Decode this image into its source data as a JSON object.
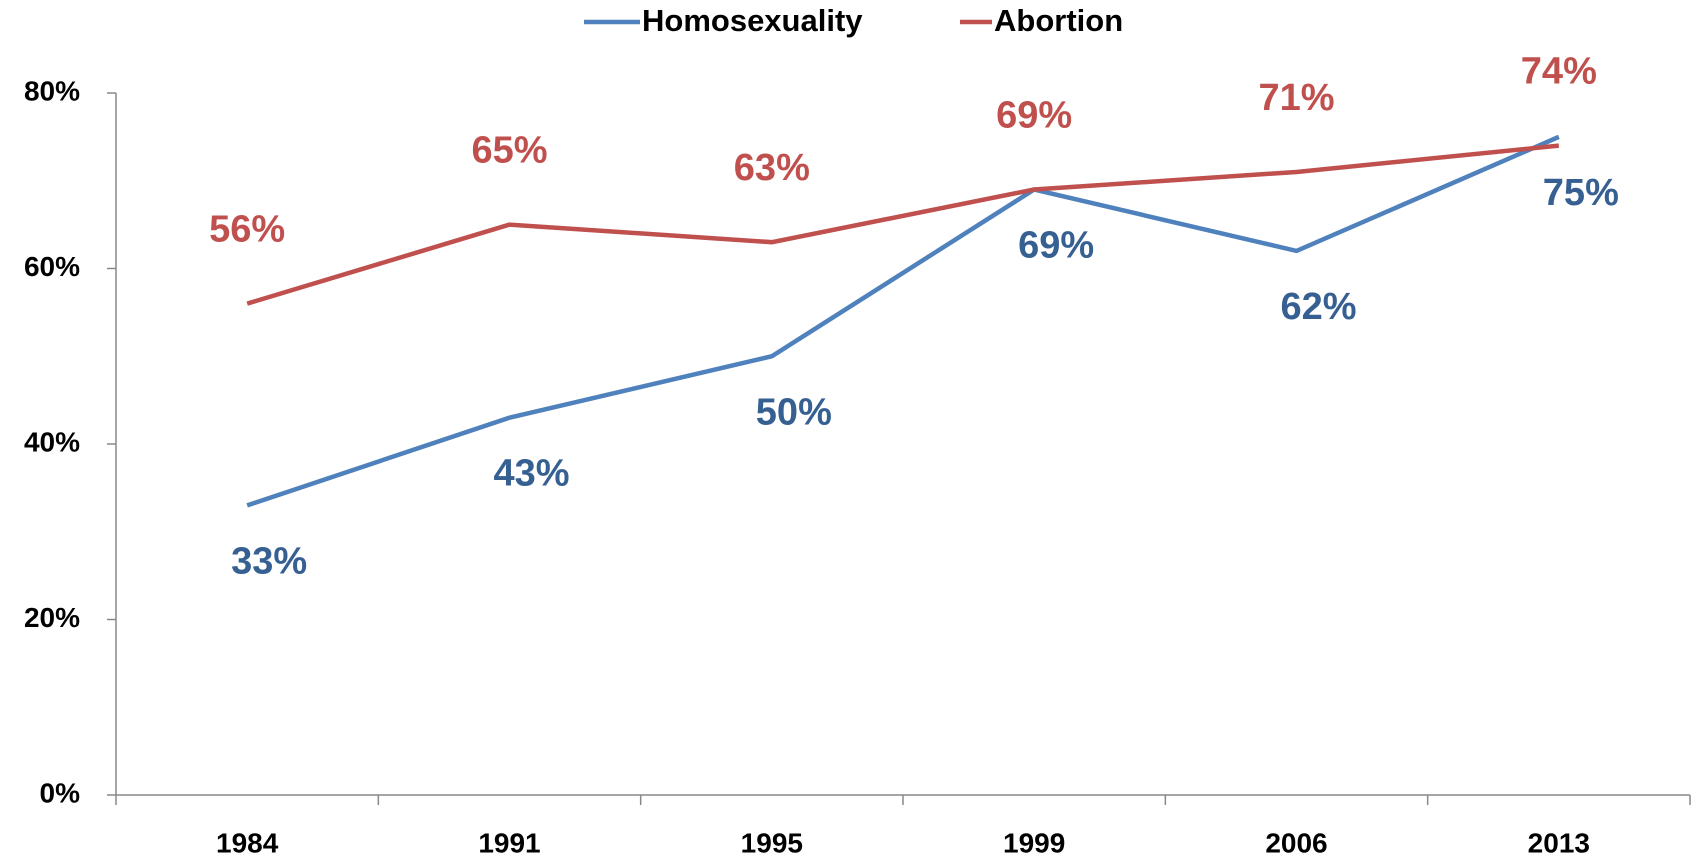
{
  "chart_data": {
    "type": "line",
    "categories": [
      "1984",
      "1991",
      "1995",
      "1999",
      "2006",
      "2013"
    ],
    "series": [
      {
        "name": "Homosexuality",
        "color": "#4f81bd",
        "label_color": "#376092",
        "values": [
          33,
          43,
          50,
          69,
          62,
          75
        ],
        "value_labels": [
          "33%",
          "43%",
          "50%",
          "69%",
          "62%",
          "75%"
        ]
      },
      {
        "name": "Abortion",
        "color": "#c0504d",
        "label_color": "#c0504d",
        "values": [
          56,
          65,
          63,
          69,
          71,
          74
        ],
        "value_labels": [
          "56%",
          "65%",
          "63%",
          "69%",
          "71%",
          "74%"
        ]
      }
    ],
    "ylim": [
      0,
      80
    ],
    "yticks": [
      {
        "value": 0,
        "label": "0%"
      },
      {
        "value": 20,
        "label": "20%"
      },
      {
        "value": 40,
        "label": "40%"
      },
      {
        "value": 60,
        "label": "60%"
      },
      {
        "value": 80,
        "label": "80%"
      }
    ],
    "grid": false,
    "legend": "top"
  }
}
